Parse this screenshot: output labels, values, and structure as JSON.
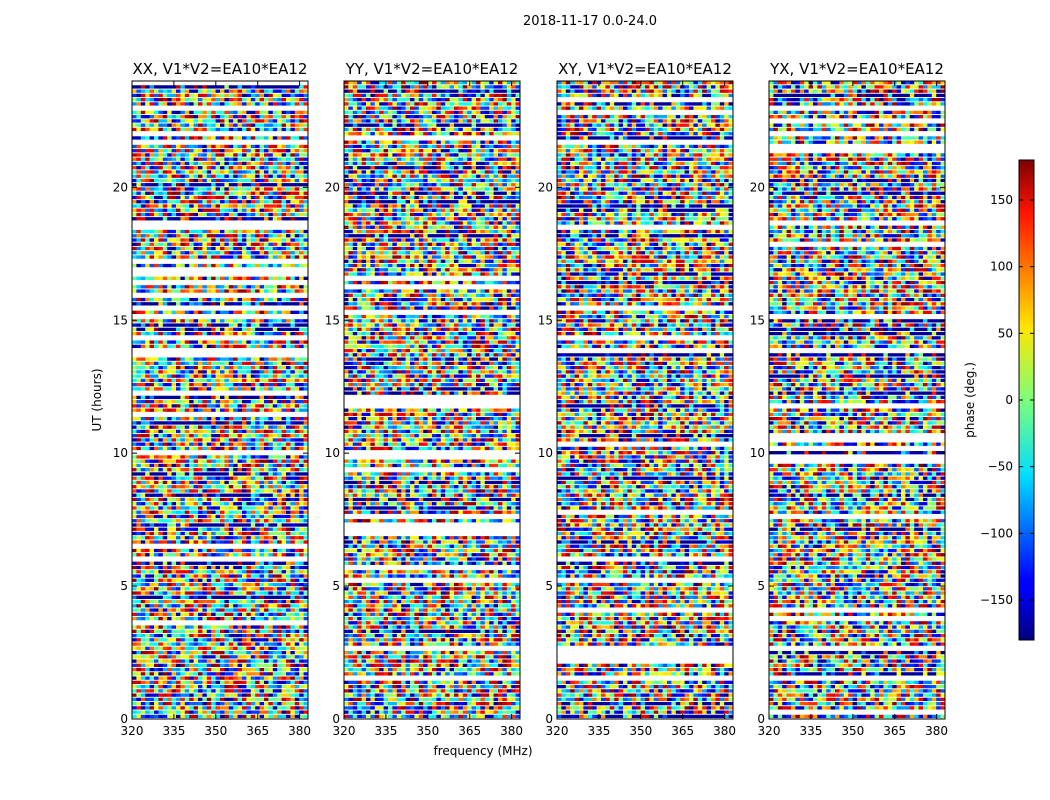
{
  "title": "2018-11-17 0.0-24.0",
  "chart_data": {
    "type": "heatmap",
    "xlabel": "frequency (MHz)",
    "ylabel": "UT (hours)",
    "xlim": [
      320,
      383
    ],
    "ylim": [
      0,
      24
    ],
    "xticks": [
      320,
      335,
      350,
      365,
      380
    ],
    "yticks": [
      0,
      5,
      10,
      15,
      20
    ],
    "panels": [
      {
        "title": "XX, V1*V2=EA10*EA12"
      },
      {
        "title": "YY, V1*V2=EA10*EA12"
      },
      {
        "title": "XY, V1*V2=EA10*EA12"
      },
      {
        "title": "YX, V1*V2=EA10*EA12"
      }
    ],
    "colorbar": {
      "label": "phase (deg.)",
      "range": [
        -180,
        180
      ],
      "ticks": [
        -150,
        -100,
        -50,
        0,
        50,
        100,
        150
      ],
      "colormap": "jet"
    }
  }
}
